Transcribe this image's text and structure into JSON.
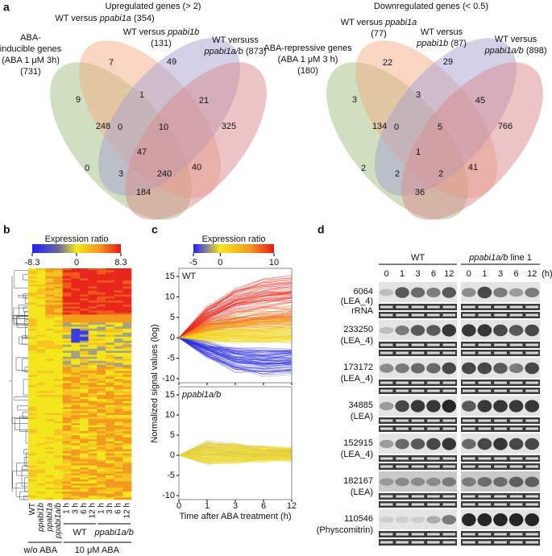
{
  "figure": {
    "a": {
      "label": "a",
      "venns": [
        {
          "title": "Upregulated genes (> 2)",
          "sets": [
            {
              "lines": [
                [
                  {
                    "text": "ABA-"
                  }
                ],
                [
                  {
                    "text": "inducible genes"
                  }
                ],
                [
                  {
                    "text": "(ABA 1 μM 3h)"
                  }
                ],
                [
                  {
                    "text": "(731)"
                  }
                ]
              ]
            },
            {
              "lines": [
                [
                  {
                    "text": "WT versus "
                  },
                  {
                    "text": "ppabi1a",
                    "italic": true
                  },
                  {
                    "text": " (354)"
                  }
                ]
              ]
            },
            {
              "lines": [
                [
                  {
                    "text": "WT versus "
                  },
                  {
                    "text": "ppabi1b",
                    "italic": true
                  }
                ],
                [
                  {
                    "text": "(131)"
                  }
                ]
              ]
            },
            {
              "lines": [
                [
                  {
                    "text": "WT versuss"
                  }
                ],
                [
                  {
                    "text": "ppabi1a/b",
                    "italic": true
                  },
                  {
                    "text": " (873)"
                  }
                ]
              ]
            }
          ],
          "regions": [
            7,
            49,
            9,
            1,
            21,
            248,
            0,
            10,
            325,
            47,
            0,
            3,
            240,
            40,
            184
          ]
        },
        {
          "title": "Downregulated genes (< 0.5)",
          "sets": [
            {
              "lines": [
                [
                  {
                    "text": "ABA-repressive genes"
                  }
                ],
                [
                  {
                    "text": "(ABA 1 μM 3 h)"
                  }
                ],
                [
                  {
                    "text": "(180)"
                  }
                ]
              ]
            },
            {
              "lines": [
                [
                  {
                    "text": "WT versus "
                  },
                  {
                    "text": "ppabi1a",
                    "italic": true
                  }
                ],
                [
                  {
                    "text": "(77)"
                  }
                ]
              ]
            },
            {
              "lines": [
                [
                  {
                    "text": "WT versus"
                  }
                ],
                [
                  {
                    "text": "ppabi1b",
                    "italic": true
                  },
                  {
                    "text": " (87)"
                  }
                ]
              ]
            },
            {
              "lines": [
                [
                  {
                    "text": "WT versus"
                  }
                ],
                [
                  {
                    "text": "ppabi1a/b",
                    "italic": true
                  },
                  {
                    "text": " (898)"
                  }
                ]
              ]
            }
          ],
          "regions": [
            22,
            29,
            3,
            3,
            45,
            134,
            0,
            5,
            766,
            1,
            2,
            2,
            2,
            41,
            36
          ]
        }
      ]
    },
    "b": {
      "label": "b",
      "colorbar": {
        "title": "Expression ratio",
        "lim": [
          -8.3,
          8.3
        ],
        "ticks": [
          -8.3,
          0,
          8.3
        ]
      },
      "columns": [
        {
          "text": "WT"
        },
        {
          "text": "ppabi1b",
          "italic": true
        },
        {
          "text": "ppabi1a",
          "italic": true
        },
        {
          "text": "ppabi1a/b",
          "italic": true
        },
        {
          "text": "1 h"
        },
        {
          "text": "3 h"
        },
        {
          "text": "6 h"
        },
        {
          "text": "12 h"
        },
        {
          "text": "1 h"
        },
        {
          "text": "3 h"
        },
        {
          "text": "6 h"
        },
        {
          "text": "12 h"
        }
      ],
      "groups": [
        {
          "text": "WT"
        },
        {
          "text": "ppabi1a/b",
          "italic": true
        }
      ],
      "conditions": [
        "w/o ABA",
        "10 μM ABA"
      ]
    },
    "c": {
      "label": "c",
      "colorbar": {
        "title": "Expression ratio",
        "lim": [
          -5,
          10
        ],
        "ticks": [
          -5,
          0,
          10
        ]
      },
      "ylabel": "Normalized signal values (log)",
      "xlabel": "Time after ABA treatment (h)",
      "x_categories": [
        "0",
        "1",
        "3",
        "6",
        "12"
      ],
      "ylim": [
        -11,
        17
      ],
      "yticks": [
        -10,
        -5,
        0,
        5,
        10,
        15
      ],
      "plots": [
        {
          "text": "WT"
        },
        {
          "text": "ppabi1a/b",
          "italic": true
        }
      ]
    },
    "d": {
      "label": "d",
      "groups": [
        [
          {
            "text": "WT"
          }
        ],
        [
          {
            "text": "ppabi1a/b",
            "italic": true
          },
          {
            "text": " line 1"
          }
        ]
      ],
      "times": [
        "0",
        "1",
        "3",
        "6",
        "12"
      ],
      "unit": "(h)",
      "blots": [
        {
          "lines": [
            "6064",
            "(LEA_4)",
            "rRNA"
          ]
        },
        {
          "lines": [
            "233250",
            "(LEA_4)"
          ]
        },
        {
          "lines": [
            "173172",
            "(LEA_4)"
          ]
        },
        {
          "lines": [
            "34885",
            "(LEA)"
          ]
        },
        {
          "lines": [
            "152915",
            "(LEA_4)"
          ]
        },
        {
          "lines": [
            "182167",
            "(LEA)"
          ]
        },
        {
          "lines": [
            "110546",
            "(Physcomitrin)"
          ]
        }
      ]
    }
  }
}
